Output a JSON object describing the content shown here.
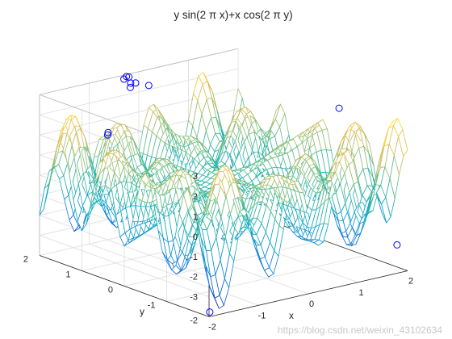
{
  "chart_data": {
    "type": "surface-mesh",
    "title": "y sin(2 π x)+x cos(2 π y)",
    "function": "z = y*sin(2*pi*x) + x*cos(2*pi*y)",
    "x_range": [
      -2,
      2
    ],
    "y_range": [
      -2,
      2
    ],
    "zlim": [
      -4,
      4
    ],
    "xlabel": "x",
    "ylabel": "y",
    "zlabel": "",
    "x_ticks": [
      "-2",
      "-1",
      "0",
      "1",
      "2"
    ],
    "y_ticks": [
      "-2",
      "-1",
      "0",
      "1",
      "2"
    ],
    "z_ticks": [
      "-3",
      "-2",
      "-1",
      "0",
      "1",
      "2",
      "3"
    ],
    "grid": true,
    "colormap": [
      "#352a87",
      "#0f5cdd",
      "#1481d6",
      "#06a4ca",
      "#2eb7a4",
      "#87bf77",
      "#d1bb59",
      "#fec832",
      "#f9fb0e"
    ],
    "markers": {
      "style": "circle",
      "color": "#0000ff",
      "points": [
        {
          "x": -0.3,
          "y": 2.0,
          "z": 3.8
        },
        {
          "x": -0.25,
          "y": 2.0,
          "z": 3.9
        },
        {
          "x": -0.2,
          "y": 2.0,
          "z": 3.85
        },
        {
          "x": -0.15,
          "y": 1.9,
          "z": 3.6
        },
        {
          "x": -0.25,
          "y": 1.9,
          "z": 3.65
        },
        {
          "x": -0.3,
          "y": 1.85,
          "z": 3.5
        },
        {
          "x": 0.2,
          "y": 2.0,
          "z": 3.2
        },
        {
          "x": -1.9,
          "y": 0.5,
          "z": 3.2
        },
        {
          "x": -1.95,
          "y": 0.45,
          "z": 3.15
        },
        {
          "x": 1.9,
          "y": -0.5,
          "z": 3.0
        },
        {
          "x": -1.9,
          "y": -1.9,
          "z": -3.9
        },
        {
          "x": 2.0,
          "y": -1.75,
          "z": -2.9
        }
      ]
    }
  },
  "watermark": "https://blog.csdn.net/weixin_43102634"
}
